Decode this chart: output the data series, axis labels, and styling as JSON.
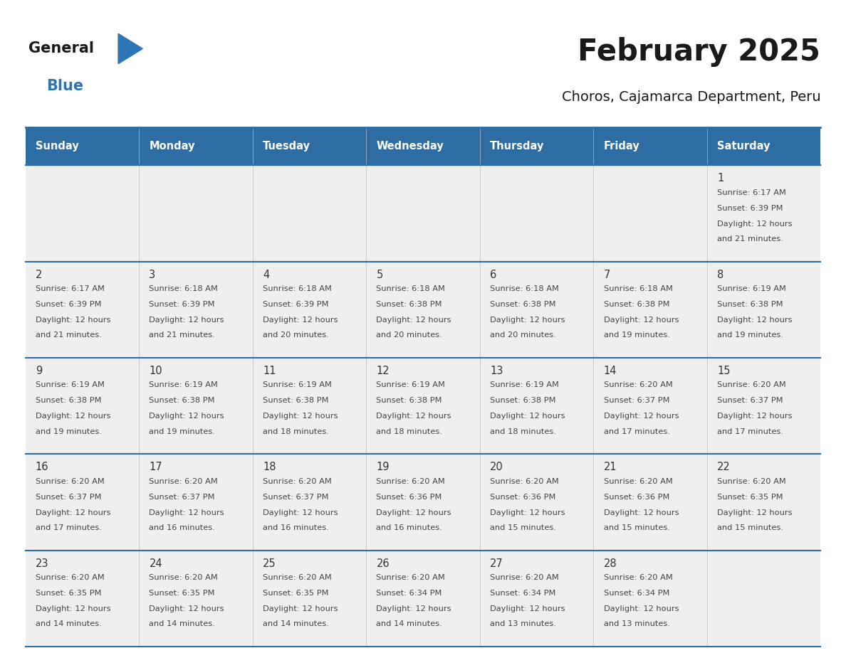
{
  "title": "February 2025",
  "subtitle": "Choros, Cajamarca Department, Peru",
  "days_of_week": [
    "Sunday",
    "Monday",
    "Tuesday",
    "Wednesday",
    "Thursday",
    "Friday",
    "Saturday"
  ],
  "header_bg_color": "#2E6DA4",
  "header_text_color": "#FFFFFF",
  "cell_bg_color": "#EFEFEF",
  "row_separator_color": "#2E6DA4",
  "col_separator_color": "#BBBBBB",
  "day_number_color": "#333333",
  "text_color": "#444444",
  "logo_general_color": "#1a1a1a",
  "logo_blue_color": "#2E75B6",
  "title_color": "#1a1a1a",
  "subtitle_color": "#1a1a1a",
  "calendar_data": [
    [
      null,
      null,
      null,
      null,
      null,
      null,
      {
        "day": 1,
        "sunrise": "6:17 AM",
        "sunset": "6:39 PM",
        "daylight": "12 hours",
        "daylight2": "and 21 minutes."
      }
    ],
    [
      {
        "day": 2,
        "sunrise": "6:17 AM",
        "sunset": "6:39 PM",
        "daylight": "12 hours",
        "daylight2": "and 21 minutes."
      },
      {
        "day": 3,
        "sunrise": "6:18 AM",
        "sunset": "6:39 PM",
        "daylight": "12 hours",
        "daylight2": "and 21 minutes."
      },
      {
        "day": 4,
        "sunrise": "6:18 AM",
        "sunset": "6:39 PM",
        "daylight": "12 hours",
        "daylight2": "and 20 minutes."
      },
      {
        "day": 5,
        "sunrise": "6:18 AM",
        "sunset": "6:38 PM",
        "daylight": "12 hours",
        "daylight2": "and 20 minutes."
      },
      {
        "day": 6,
        "sunrise": "6:18 AM",
        "sunset": "6:38 PM",
        "daylight": "12 hours",
        "daylight2": "and 20 minutes."
      },
      {
        "day": 7,
        "sunrise": "6:18 AM",
        "sunset": "6:38 PM",
        "daylight": "12 hours",
        "daylight2": "and 19 minutes."
      },
      {
        "day": 8,
        "sunrise": "6:19 AM",
        "sunset": "6:38 PM",
        "daylight": "12 hours",
        "daylight2": "and 19 minutes."
      }
    ],
    [
      {
        "day": 9,
        "sunrise": "6:19 AM",
        "sunset": "6:38 PM",
        "daylight": "12 hours",
        "daylight2": "and 19 minutes."
      },
      {
        "day": 10,
        "sunrise": "6:19 AM",
        "sunset": "6:38 PM",
        "daylight": "12 hours",
        "daylight2": "and 19 minutes."
      },
      {
        "day": 11,
        "sunrise": "6:19 AM",
        "sunset": "6:38 PM",
        "daylight": "12 hours",
        "daylight2": "and 18 minutes."
      },
      {
        "day": 12,
        "sunrise": "6:19 AM",
        "sunset": "6:38 PM",
        "daylight": "12 hours",
        "daylight2": "and 18 minutes."
      },
      {
        "day": 13,
        "sunrise": "6:19 AM",
        "sunset": "6:38 PM",
        "daylight": "12 hours",
        "daylight2": "and 18 minutes."
      },
      {
        "day": 14,
        "sunrise": "6:20 AM",
        "sunset": "6:37 PM",
        "daylight": "12 hours",
        "daylight2": "and 17 minutes."
      },
      {
        "day": 15,
        "sunrise": "6:20 AM",
        "sunset": "6:37 PM",
        "daylight": "12 hours",
        "daylight2": "and 17 minutes."
      }
    ],
    [
      {
        "day": 16,
        "sunrise": "6:20 AM",
        "sunset": "6:37 PM",
        "daylight": "12 hours",
        "daylight2": "and 17 minutes."
      },
      {
        "day": 17,
        "sunrise": "6:20 AM",
        "sunset": "6:37 PM",
        "daylight": "12 hours",
        "daylight2": "and 16 minutes."
      },
      {
        "day": 18,
        "sunrise": "6:20 AM",
        "sunset": "6:37 PM",
        "daylight": "12 hours",
        "daylight2": "and 16 minutes."
      },
      {
        "day": 19,
        "sunrise": "6:20 AM",
        "sunset": "6:36 PM",
        "daylight": "12 hours",
        "daylight2": "and 16 minutes."
      },
      {
        "day": 20,
        "sunrise": "6:20 AM",
        "sunset": "6:36 PM",
        "daylight": "12 hours",
        "daylight2": "and 15 minutes."
      },
      {
        "day": 21,
        "sunrise": "6:20 AM",
        "sunset": "6:36 PM",
        "daylight": "12 hours",
        "daylight2": "and 15 minutes."
      },
      {
        "day": 22,
        "sunrise": "6:20 AM",
        "sunset": "6:35 PM",
        "daylight": "12 hours",
        "daylight2": "and 15 minutes."
      }
    ],
    [
      {
        "day": 23,
        "sunrise": "6:20 AM",
        "sunset": "6:35 PM",
        "daylight": "12 hours",
        "daylight2": "and 14 minutes."
      },
      {
        "day": 24,
        "sunrise": "6:20 AM",
        "sunset": "6:35 PM",
        "daylight": "12 hours",
        "daylight2": "and 14 minutes."
      },
      {
        "day": 25,
        "sunrise": "6:20 AM",
        "sunset": "6:35 PM",
        "daylight": "12 hours",
        "daylight2": "and 14 minutes."
      },
      {
        "day": 26,
        "sunrise": "6:20 AM",
        "sunset": "6:34 PM",
        "daylight": "12 hours",
        "daylight2": "and 14 minutes."
      },
      {
        "day": 27,
        "sunrise": "6:20 AM",
        "sunset": "6:34 PM",
        "daylight": "12 hours",
        "daylight2": "and 13 minutes."
      },
      {
        "day": 28,
        "sunrise": "6:20 AM",
        "sunset": "6:34 PM",
        "daylight": "12 hours",
        "daylight2": "and 13 minutes."
      },
      null
    ]
  ]
}
